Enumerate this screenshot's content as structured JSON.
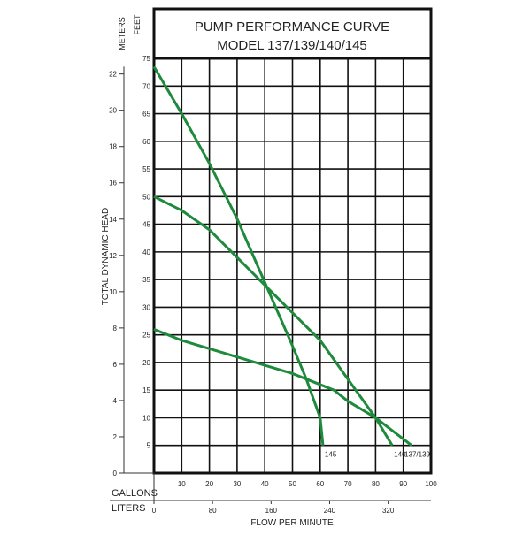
{
  "chart_data": {
    "type": "line",
    "title": "PUMP PERFORMANCE CURVE",
    "subtitle": "MODEL 137/139/140/145",
    "ylabel": "TOTAL DYNAMIC HEAD",
    "ylabel_units_feet": "FEET",
    "ylabel_units_meters": "METERS",
    "xlabel": "FLOW PER MINUTE",
    "x_units_gallons": "GALLONS",
    "x_units_liters": "LITERS",
    "xlim": [
      0,
      100
    ],
    "ylim": [
      0,
      75
    ],
    "grid": true,
    "line_color": "#1e8a3c",
    "x_ticks_gallons": [
      "10",
      "20",
      "30",
      "40",
      "50",
      "60",
      "70",
      "80",
      "90",
      "100"
    ],
    "x_ticks_liters": [
      "0",
      "80",
      "160",
      "240",
      "320"
    ],
    "y_ticks_feet": [
      "5",
      "10",
      "15",
      "20",
      "25",
      "30",
      "35",
      "40",
      "45",
      "50",
      "55",
      "60",
      "65",
      "70",
      "75"
    ],
    "y_ticks_meters": [
      "0",
      "2",
      "4",
      "6",
      "8",
      "10",
      "12",
      "14",
      "16",
      "18",
      "20",
      "22"
    ],
    "series": [
      {
        "name": "145",
        "x": [
          0,
          10,
          20,
          30,
          40,
          50,
          55,
          60,
          61
        ],
        "y": [
          73.5,
          65,
          56,
          46,
          34.5,
          23,
          17,
          10,
          5
        ]
      },
      {
        "name": "140",
        "x": [
          0,
          10,
          20,
          30,
          40,
          50,
          60,
          70,
          80,
          86
        ],
        "y": [
          50,
          47.5,
          44,
          39,
          34,
          29,
          24,
          17,
          10,
          5
        ]
      },
      {
        "name": "137/139",
        "x": [
          0,
          10,
          20,
          30,
          40,
          50,
          60,
          65,
          70,
          80,
          93
        ],
        "y": [
          26,
          24,
          22.5,
          21,
          19.5,
          18,
          16,
          15,
          13,
          10,
          5
        ]
      }
    ]
  }
}
